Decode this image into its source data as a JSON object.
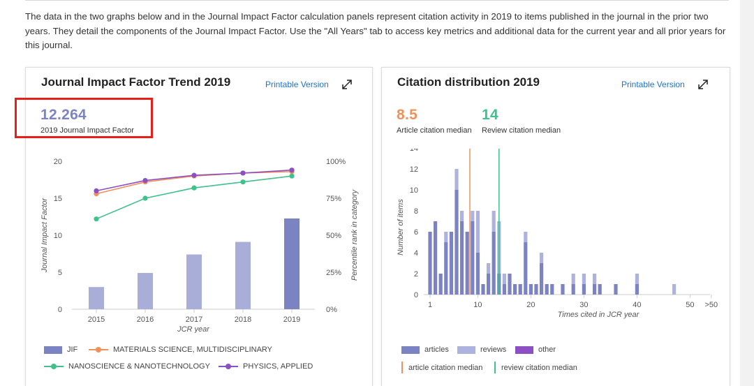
{
  "intro_text": "The data in the two graphs below and in the Journal Impact Factor calculation panels represent citation activity in 2019 to items published in the journal in the prior two years. They detail the components of the Journal Impact Factor. Use the \"All Years\" tab to access key metrics and additional data for the current year and all prior years for this journal.",
  "left_panel": {
    "title": "Journal Impact Factor Trend 2019",
    "printable_label": "Printable Version",
    "jif_value": "12.264",
    "jif_label": "2019 Journal Impact Factor",
    "colors": {
      "jif_bar": "#a9aed9",
      "jif_bar_current": "#7b83c2",
      "materials": "#f0915a",
      "nano": "#3ec18b",
      "physics": "#8c4fc4",
      "jif_value_text": "#7b83c2",
      "highlight": "#e3201b"
    },
    "chart_data": {
      "type": "bar",
      "categories": [
        "2015",
        "2016",
        "2017",
        "2018",
        "2019"
      ],
      "series": [
        {
          "name": "JIF",
          "type": "bar",
          "axis": "left",
          "values": [
            3.0,
            4.9,
            7.4,
            9.1,
            12.264
          ]
        },
        {
          "name": "MATERIALS SCIENCE, MULTIDISCIPLINARY",
          "type": "line",
          "axis": "right",
          "values": [
            78,
            86,
            90,
            92,
            93
          ]
        },
        {
          "name": "NANOSCIENCE & NANOTECHNOLOGY",
          "type": "line",
          "axis": "right",
          "values": [
            61,
            75,
            82,
            86,
            90
          ]
        },
        {
          "name": "PHYSICS, APPLIED",
          "type": "line",
          "axis": "right",
          "values": [
            80,
            87,
            90.5,
            92,
            94
          ]
        }
      ],
      "xlabel": "JCR year",
      "ylabel": "Journal Impact Factor",
      "ylabel_right": "Percentile rank in category",
      "ylim": [
        0,
        20
      ],
      "yticks": [
        "0",
        "5",
        "10",
        "15",
        "20"
      ],
      "ylim_right": [
        0,
        100
      ],
      "yticks_right": [
        "0%",
        "25%",
        "50%",
        "75%",
        "100%"
      ],
      "grid": false,
      "legend_placement": "bottom"
    }
  },
  "right_panel": {
    "title": "Citation distribution 2019",
    "printable_label": "Printable Version",
    "article_median_value": "8.5",
    "article_median_label": "Article citation median",
    "review_median_value": "14",
    "review_median_label": "Review citation median",
    "colors": {
      "articles": "#7b83c2",
      "reviews": "#aeb3de",
      "other": "#8c4fc4",
      "article_median": "#f0915a",
      "review_median": "#3ec18b"
    },
    "chart_data": {
      "type": "bar",
      "stacked": true,
      "x": [
        1,
        2,
        3,
        4,
        5,
        6,
        7,
        8,
        9,
        10,
        11,
        12,
        13,
        14,
        15,
        16,
        17,
        18,
        19,
        20,
        21,
        22,
        23,
        24,
        25,
        26,
        27,
        28,
        29,
        30,
        31,
        32,
        33,
        34,
        35,
        36,
        37,
        38,
        39,
        40,
        41,
        42,
        43,
        44,
        45,
        46,
        47,
        48,
        49,
        50
      ],
      "series": [
        {
          "name": "articles",
          "values": [
            6,
            7,
            2,
            5,
            6,
            10,
            7,
            6,
            7,
            4,
            1,
            2,
            6,
            2,
            1,
            2,
            1,
            1,
            5,
            1,
            1,
            3,
            1,
            1,
            0,
            1,
            0,
            1,
            0,
            1,
            0,
            1,
            1,
            0,
            0,
            1,
            0,
            0,
            0,
            1,
            0,
            0,
            0,
            0,
            0,
            0,
            0,
            0,
            0,
            0
          ]
        },
        {
          "name": "reviews",
          "values": [
            0,
            0,
            0,
            1,
            0,
            2,
            1,
            0,
            1,
            4,
            0,
            1,
            2,
            5,
            1,
            0,
            0,
            0,
            1,
            0,
            0,
            1,
            0,
            0,
            0,
            0,
            0,
            1,
            0,
            1,
            0,
            1,
            0,
            0,
            0,
            0,
            0,
            0,
            0,
            1,
            0,
            0,
            0,
            0,
            0,
            0,
            1,
            0,
            0,
            0
          ]
        },
        {
          "name": "other",
          "values": [
            0,
            0,
            0,
            0,
            0,
            0,
            0,
            0,
            0,
            0,
            0,
            0,
            0,
            0,
            0,
            0,
            0,
            0,
            0,
            0,
            0,
            0,
            0,
            0,
            0,
            0,
            0,
            0,
            0,
            0,
            0,
            0,
            0,
            0,
            0,
            0,
            0,
            0,
            0,
            0,
            0,
            0,
            0,
            0,
            0,
            0,
            0,
            0,
            0,
            0
          ]
        }
      ],
      "markers": [
        {
          "name": "article citation median",
          "x": 8.5
        },
        {
          "name": "review citation median",
          "x": 14
        }
      ],
      "xlabel": "Times cited in JCR year",
      "ylabel": "Number of items",
      "xticks": [
        "1",
        "10",
        "20",
        "30",
        "40",
        "50",
        ">50"
      ],
      "ylim": [
        0,
        14
      ],
      "yticks": [
        "0",
        "2",
        "4",
        "6",
        "8",
        "10",
        "12",
        "14"
      ],
      "grid": false,
      "legend_placement": "bottom"
    }
  }
}
